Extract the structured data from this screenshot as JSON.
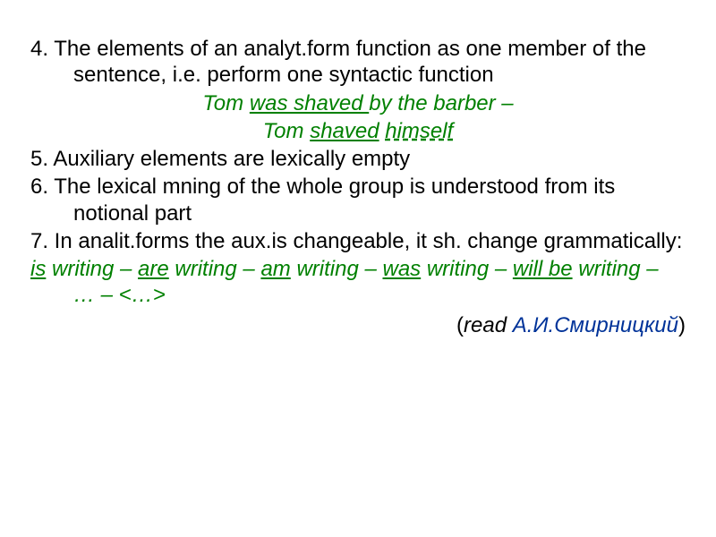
{
  "colors": {
    "text": "#000000",
    "green": "#008000",
    "blue": "#003399",
    "background": "#ffffff"
  },
  "point4": {
    "text": "4. The elements of an analyt.form function as one member of the sentence, i.e. perform one syntactic function"
  },
  "example1": {
    "tom": "Tom ",
    "was_shaved": "was shaved ",
    "by_the_barber": "by the barber –"
  },
  "example2": {
    "tom": "Tom ",
    "shaved": "shaved",
    "space": " ",
    "himself": "himself"
  },
  "point5": {
    "text": "5. Auxiliary elements are lexically empty"
  },
  "point6": {
    "text": "6. The lexical mning of the whole group is understood from its notional part"
  },
  "point7": {
    "text": "7. In analit.forms the aux.is changeable, it sh. change grammatically:"
  },
  "conjugation": {
    "is": "is",
    "writing1": " writing – ",
    "are": "are",
    "writing2": " writing – ",
    "am": "am",
    "writing3": " writing –  ",
    "was": "was",
    "writing4": " writing – ",
    "will_be": "will be",
    "writing5": " writing – …  – <…>"
  },
  "attribution": {
    "open": "(",
    "read": "read ",
    "author": "А.И.Смирницкий",
    "close": ")"
  }
}
